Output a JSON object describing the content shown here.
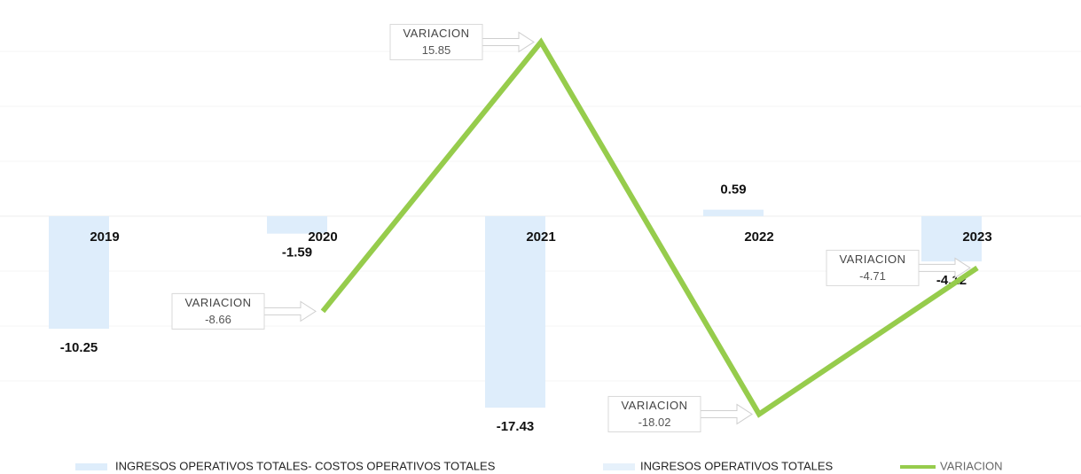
{
  "chart_data": {
    "type": "bar-line",
    "categories": [
      "2019",
      "2020",
      "2021",
      "2022",
      "2023"
    ],
    "series": [
      {
        "name": "INGRESOS OPERATIVOS TOTALES- COSTOS OPERATIVOS TOTALES",
        "type": "bar",
        "color": "#deedfb",
        "values": [
          -10.25,
          -1.59,
          -17.43,
          0.59,
          -4.12
        ]
      },
      {
        "name": "INGRESOS OPERATIVOS TOTALES",
        "type": "bar",
        "color": "#e6f1fb",
        "values": [
          null,
          null,
          null,
          null,
          null
        ]
      },
      {
        "name": "VARIACION",
        "type": "line",
        "color": "#96cc4c",
        "values": [
          null,
          -8.66,
          15.85,
          -18.02,
          -4.71
        ]
      }
    ],
    "ylim": [
      -20,
      20
    ],
    "yticks": [
      -15,
      -10,
      -5,
      0,
      5,
      10,
      15
    ],
    "grid": true,
    "legend": "bottom"
  }
}
